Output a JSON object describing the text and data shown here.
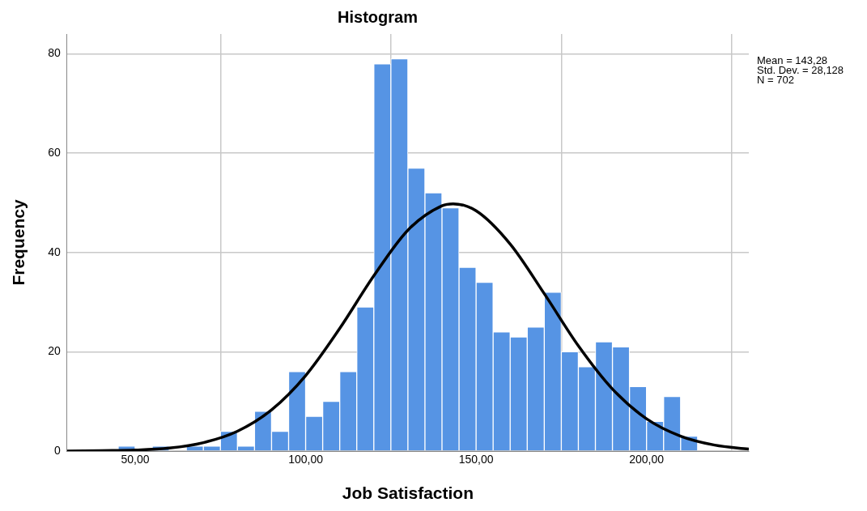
{
  "chart_data": {
    "type": "histogram",
    "title": "Histogram",
    "xlabel": "Job Satisfaction",
    "ylabel": "Frequency",
    "bins": [
      45,
      50,
      55,
      60,
      65,
      70,
      75,
      80,
      85,
      90,
      95,
      100,
      105,
      110,
      115,
      120,
      125,
      130,
      135,
      140,
      145,
      150,
      155,
      160,
      165,
      170,
      175,
      180,
      185,
      190,
      195,
      200,
      205,
      210,
      215
    ],
    "values": [
      1,
      0,
      1,
      0,
      1,
      1,
      4,
      1,
      8,
      4,
      16,
      7,
      10,
      16,
      29,
      78,
      79,
      57,
      52,
      49,
      37,
      34,
      24,
      23,
      25,
      32,
      20,
      17,
      22,
      21,
      13,
      6,
      11,
      3
    ],
    "color": "#5694e4",
    "series": [
      {
        "type": "line",
        "color": "#000000",
        "x": [
          30,
          40,
          50,
          60,
          70,
          80,
          90,
          100,
          110,
          120,
          130,
          140,
          143.28,
          150,
          160,
          170,
          180,
          190,
          200,
          210,
          220,
          230
        ],
        "values": [
          0,
          0.1,
          0.2,
          0.6,
          1.7,
          4.0,
          8.3,
          15.2,
          24.7,
          35.3,
          44.5,
          49.4,
          49.8,
          48.4,
          41.7,
          31.7,
          21.2,
          12.5,
          6.5,
          3.0,
          1.2,
          0.4
        ]
      }
    ],
    "xlim": [
      30,
      230
    ],
    "ylim": [
      0,
      84
    ],
    "xticks": [
      {
        "value": 50,
        "label": "50,00"
      },
      {
        "value": 100,
        "label": "100,00"
      },
      {
        "value": 150,
        "label": "150,00"
      },
      {
        "value": 200,
        "label": "200,00"
      }
    ],
    "yticks": [
      0,
      20,
      40,
      60,
      80
    ],
    "grid": true,
    "legend": false,
    "marker": "none",
    "line_style": "solid",
    "annotations": [
      "Mean = 143,28",
      "Std. Dev. = 28,128",
      "N = 702"
    ]
  }
}
